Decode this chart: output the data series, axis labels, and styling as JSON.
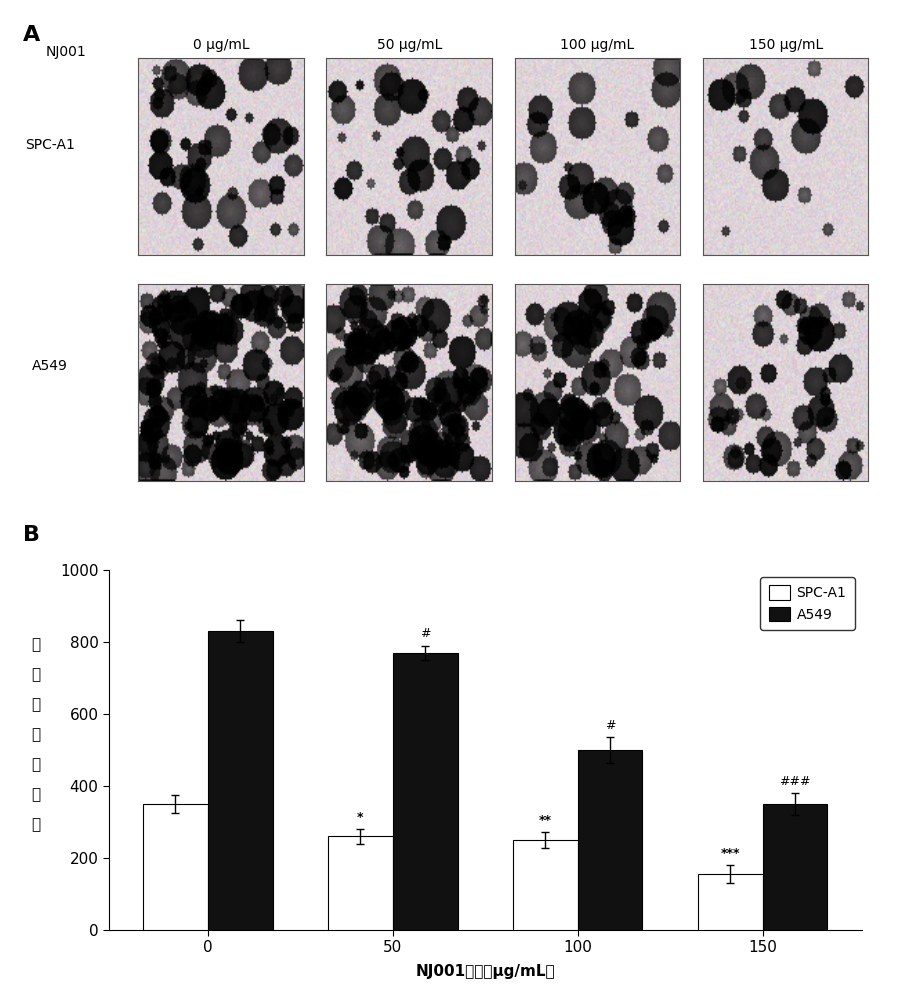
{
  "panel_A_label": "A",
  "panel_B_label": "B",
  "header_labels": [
    "NJ001",
    "0 μg/mL",
    "50 μg/mL",
    "100 μg/mL",
    "150 μg/mL"
  ],
  "row_labels": [
    "SPC-A1",
    "A549"
  ],
  "concentrations": [
    0,
    50,
    100,
    150
  ],
  "spc_values": [
    350,
    260,
    250,
    155
  ],
  "spc_errors": [
    25,
    20,
    22,
    25
  ],
  "a549_values": [
    830,
    770,
    500,
    350
  ],
  "a549_errors": [
    30,
    20,
    35,
    30
  ],
  "spc_annotations": [
    "",
    "*",
    "**",
    "***"
  ],
  "a549_annotations": [
    "",
    "#",
    "#",
    "###"
  ],
  "ylabel_chars": [
    "每",
    "孔",
    "侵",
    "袋",
    "细",
    "胞",
    "数"
  ],
  "xlabel": "NJ001浓度（μg/mL）",
  "ylim": [
    0,
    1000
  ],
  "yticks": [
    0,
    200,
    400,
    600,
    800,
    1000
  ],
  "bar_width": 0.35,
  "spc_color": "#ffffff",
  "spc_edgecolor": "#000000",
  "a549_color": "#111111",
  "a549_edgecolor": "#000000",
  "legend_spc": "SPC-A1",
  "legend_a549": "A549",
  "background_color": "#ffffff"
}
